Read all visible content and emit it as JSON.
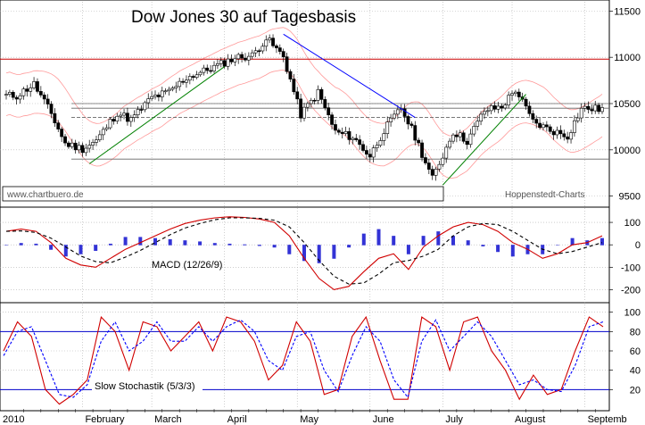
{
  "chart_data": [
    {
      "type": "candlestick",
      "title": "Dow Jones 30 auf Tagesbasis",
      "xlabel": "",
      "ylabel": "",
      "ylim": [
        9400,
        11600
      ],
      "yticks": [
        "11500",
        "11000",
        "10500",
        "10000",
        "9500"
      ],
      "watermark": "www.chartbuero.de",
      "source": "Hoppenstedt-Charts",
      "grid": true,
      "weekly_closes": [
        [
          "Jan 04",
          10584
        ],
        [
          "Jan 11",
          10710
        ],
        [
          "Jan 19",
          10390
        ],
        [
          "Jan 25",
          10067
        ],
        [
          "Feb 01",
          10012
        ],
        [
          "Feb 08",
          10099
        ],
        [
          "Feb 16",
          10402
        ],
        [
          "Feb 22",
          10325
        ],
        [
          "Mar 01",
          10566
        ],
        [
          "Mar 08",
          10625
        ],
        [
          "Mar 15",
          10780
        ],
        [
          "Mar 22",
          10850
        ],
        [
          "Mar 29",
          10927
        ],
        [
          "Apr 05",
          10997
        ],
        [
          "Apr 12",
          11018
        ],
        [
          "Apr 19",
          11204
        ],
        [
          "Apr 26",
          11008
        ],
        [
          "May 03",
          10380
        ],
        [
          "May 10",
          10620
        ],
        [
          "May 17",
          10193
        ],
        [
          "May 24",
          10136
        ],
        [
          "Jun 01",
          9931
        ],
        [
          "Jun 07",
          10211
        ],
        [
          "Jun 14",
          10450
        ],
        [
          "Jun 21",
          10143
        ],
        [
          "Jun 28",
          9686
        ],
        [
          "Jul 06",
          10198
        ],
        [
          "Jul 12",
          10097
        ],
        [
          "Jul 19",
          10424
        ],
        [
          "Jul 26",
          10467
        ],
        [
          "Aug 02",
          10653
        ],
        [
          "Aug 09",
          10303
        ],
        [
          "Aug 16",
          10213
        ],
        [
          "Aug 23",
          10150
        ],
        [
          "Aug 30",
          10447
        ]
      ],
      "horizontal_levels": [
        10980,
        10500,
        10450,
        10350,
        9900
      ],
      "trendlines": [
        {
          "color": "#008000",
          "from": [
            "Feb 05",
            9850
          ],
          "to": [
            "Apr 01",
            10900
          ]
        },
        {
          "color": "#0000ff",
          "from": [
            "Apr 26",
            11250
          ],
          "to": [
            "Jun 20",
            10350
          ]
        },
        {
          "color": "#008000",
          "from": [
            "Jul 01",
            9620
          ],
          "to": [
            "Aug 06",
            10600
          ]
        }
      ]
    },
    {
      "type": "line",
      "label": "MACD (12/26/9)",
      "ylim": [
        -250,
        160
      ],
      "yticks": [
        "100",
        "0",
        "-100",
        "-200"
      ],
      "series": [
        {
          "color": "#d00000",
          "style": "solid",
          "values": [
            60,
            70,
            60,
            10,
            -60,
            -90,
            -100,
            -60,
            -20,
            10,
            40,
            70,
            95,
            110,
            120,
            125,
            122,
            115,
            100,
            40,
            -60,
            -150,
            -200,
            -185,
            -120,
            -60,
            -40,
            -110,
            -10,
            40,
            80,
            100,
            90,
            60,
            10,
            -20,
            -60,
            -40,
            0,
            10,
            40
          ]
        },
        {
          "color": "#000000",
          "style": "dashed",
          "values": [
            60,
            62,
            55,
            30,
            -10,
            -50,
            -75,
            -80,
            -55,
            -25,
            10,
            45,
            75,
            95,
            112,
            120,
            120,
            118,
            110,
            80,
            10,
            -70,
            -140,
            -175,
            -170,
            -130,
            -80,
            -70,
            -50,
            -20,
            40,
            80,
            95,
            90,
            60,
            20,
            -20,
            -40,
            -30,
            -10,
            10
          ]
        }
      ],
      "histogram_color": "#0000cc",
      "histogram": [
        0,
        8,
        5,
        -20,
        -50,
        -40,
        -25,
        5,
        35,
        35,
        30,
        25,
        20,
        15,
        8,
        5,
        2,
        -3,
        -10,
        -40,
        -70,
        -80,
        -60,
        -10,
        50,
        70,
        40,
        -40,
        40,
        60,
        40,
        20,
        -5,
        -30,
        -50,
        -40,
        -40,
        0,
        30,
        20,
        30
      ]
    },
    {
      "type": "line",
      "label": "Slow Stochastik (5/3/3)",
      "ylim": [
        0,
        108
      ],
      "yticks": [
        "100",
        "80",
        "60",
        "40",
        "20"
      ],
      "reference_lines": [
        80,
        20
      ],
      "series": [
        {
          "color": "#d00000",
          "style": "solid",
          "values": [
            60,
            90,
            75,
            20,
            5,
            15,
            30,
            95,
            80,
            40,
            90,
            85,
            60,
            75,
            90,
            60,
            95,
            90,
            70,
            30,
            45,
            90,
            70,
            15,
            20,
            75,
            95,
            50,
            10,
            10,
            95,
            85,
            40,
            90,
            95,
            60,
            40,
            10,
            35,
            15,
            20,
            60,
            95,
            85
          ]
        },
        {
          "color": "#0000ff",
          "style": "dashed",
          "values": [
            55,
            80,
            85,
            50,
            15,
            12,
            25,
            70,
            90,
            60,
            70,
            90,
            70,
            70,
            85,
            70,
            85,
            92,
            80,
            50,
            40,
            75,
            80,
            40,
            18,
            55,
            85,
            70,
            30,
            12,
            70,
            92,
            60,
            75,
            90,
            75,
            50,
            25,
            30,
            20,
            18,
            45,
            85,
            90
          ]
        }
      ]
    }
  ],
  "x_axis": {
    "months": [
      "2010",
      "February",
      "March",
      "April",
      "May",
      "June",
      "July",
      "August",
      "Septemb"
    ]
  },
  "colors": {
    "candle_up": "#ffffff",
    "candle_down": "#000000",
    "bollinger": "#ff9999",
    "resistance": "#cc0000",
    "grid": "#b0b0b0"
  }
}
